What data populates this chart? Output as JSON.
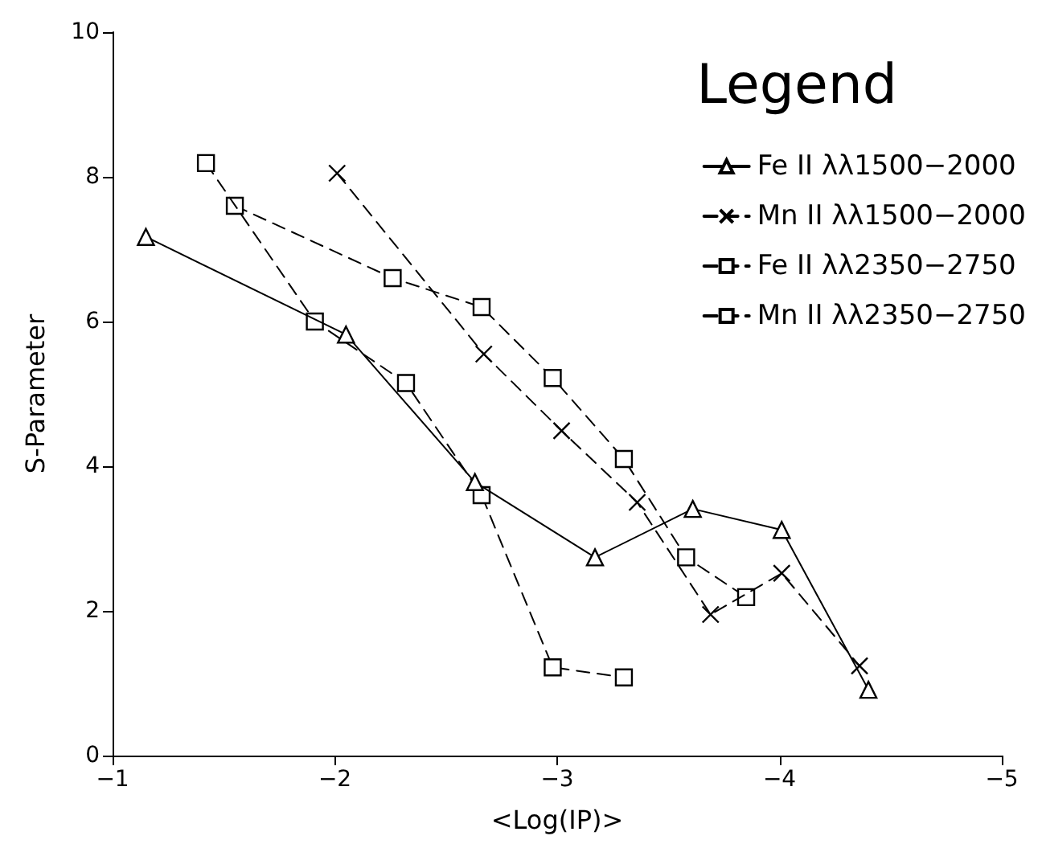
{
  "chart_data": {
    "type": "line",
    "xlabel": "<Log(IP)>",
    "ylabel": "S-Parameter",
    "legend_title": "Legend",
    "legend": "top right",
    "grid": false,
    "xlim": [
      -1,
      -5
    ],
    "xticks": [
      -1,
      -2,
      -3,
      -4,
      -5
    ],
    "ylim": [
      0,
      10
    ],
    "yticks": [
      0,
      2,
      4,
      6,
      8,
      10
    ],
    "series": [
      {
        "name": "Fe II λλ1500−2000",
        "color": "#000000",
        "marker": "triangle",
        "line_style": "solid",
        "x": [
          -1.15,
          -2.05,
          -2.63,
          -3.17,
          -3.61,
          -4.01,
          -4.4
        ],
        "values": [
          7.17,
          5.82,
          3.78,
          2.74,
          3.41,
          3.12,
          0.91
        ]
      },
      {
        "name": "Mn II λλ1500−2000",
        "color": "#000000",
        "marker": "cross",
        "line_style": "dashed",
        "x": [
          -2.01,
          -2.67,
          -3.02,
          -3.36,
          -3.69,
          -4.01,
          -4.36
        ],
        "values": [
          8.05,
          5.55,
          4.49,
          3.5,
          1.95,
          2.52,
          1.24
        ]
      },
      {
        "name": "Fe II λλ2350−2750",
        "color": "#000000",
        "marker": "square",
        "line_style": "dashed",
        "x": [
          -1.42,
          -1.91,
          -2.32,
          -2.66,
          -2.98,
          -3.3
        ],
        "values": [
          8.19,
          6.0,
          5.15,
          3.6,
          1.22,
          1.08
        ]
      },
      {
        "name": "Mn II λλ2350−2750",
        "color": "#000000",
        "marker": "square",
        "line_style": "dashed",
        "x": [
          -1.55,
          -2.26,
          -2.66,
          -2.98,
          -3.3,
          -3.58,
          -3.85
        ],
        "values": [
          7.6,
          6.6,
          6.2,
          5.22,
          4.1,
          2.74,
          2.19
        ]
      }
    ]
  }
}
